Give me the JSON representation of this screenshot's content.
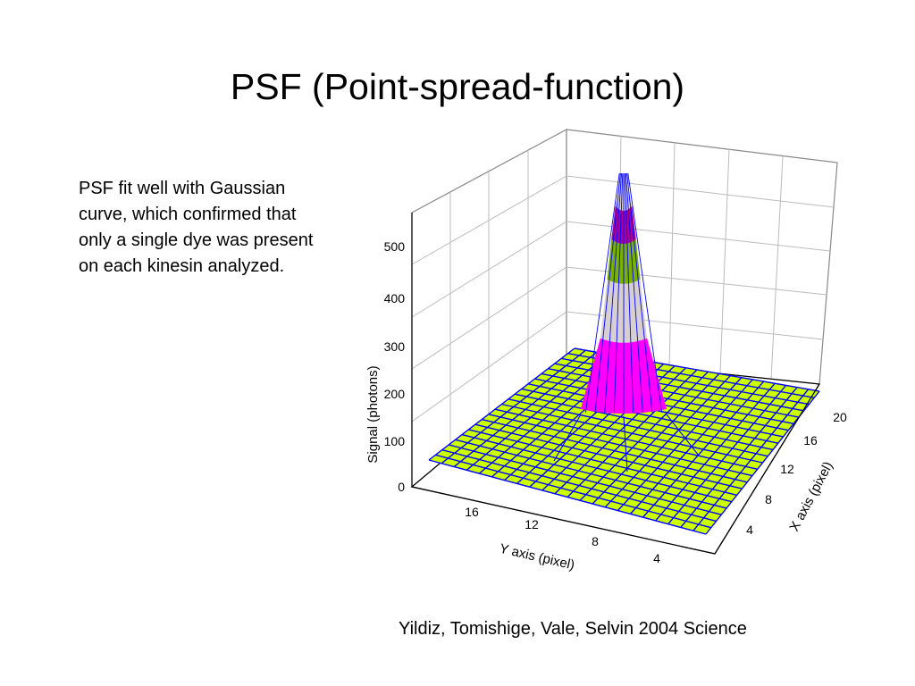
{
  "slide": {
    "title": "PSF (Point-spread-function)",
    "body": "PSF fit well with Gaussian curve, which confirmed that only a single dye was present on each kinesin analyzed.",
    "citation": "Yildiz, Tomishige, Vale, Selvin 2004 Science"
  },
  "chart_data": {
    "type": "surface",
    "zlabel": "Signal (photons)",
    "xlabel": "X axis (pixel)",
    "ylabel": "Y axis (pixel)",
    "z_ticks": [
      "0",
      "100",
      "200",
      "300",
      "400",
      "500"
    ],
    "x_ticks": [
      "4",
      "8",
      "12",
      "16",
      "20"
    ],
    "y_ticks": [
      "16",
      "12",
      "8",
      "4"
    ],
    "zlim": [
      0,
      550
    ],
    "peak": {
      "value": 560,
      "baseline": 60
    },
    "colors": {
      "baseline": "#ccff00",
      "band_1": "#ff00ff",
      "band_2": "#d7d0d2",
      "band_3": "#7ab000",
      "band_4": "#a8009a",
      "mesh": "#0000ff"
    }
  }
}
